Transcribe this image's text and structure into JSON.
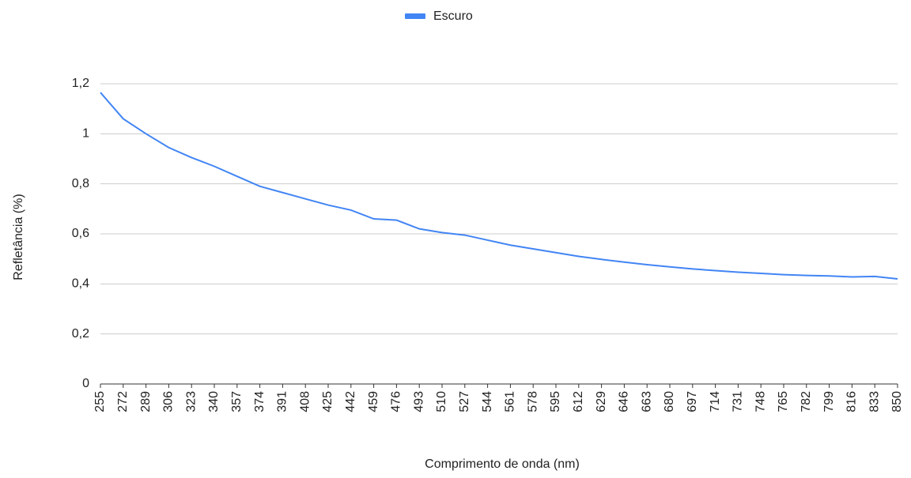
{
  "chart_data": {
    "type": "line",
    "x_label": "Comprimento de onda (nm)",
    "y_label": "Refletância (%)",
    "x": [
      255,
      272,
      289,
      306,
      323,
      340,
      357,
      374,
      391,
      408,
      425,
      442,
      459,
      476,
      493,
      510,
      527,
      544,
      561,
      578,
      595,
      612,
      629,
      646,
      663,
      680,
      697,
      714,
      731,
      748,
      765,
      782,
      799,
      816,
      833,
      850
    ],
    "series": [
      {
        "name": "Escuro",
        "color": "#4285f4",
        "values": [
          1.165,
          1.06,
          1.0,
          0.945,
          0.905,
          0.87,
          0.83,
          0.79,
          0.765,
          0.74,
          0.715,
          0.695,
          0.66,
          0.655,
          0.62,
          0.605,
          0.595,
          0.575,
          0.555,
          0.54,
          0.525,
          0.51,
          0.498,
          0.487,
          0.477,
          0.468,
          0.46,
          0.453,
          0.447,
          0.442,
          0.437,
          0.434,
          0.432,
          0.428,
          0.43,
          0.42
        ]
      }
    ],
    "xlim": [
      255,
      850
    ],
    "xticks": [
      255,
      272,
      289,
      306,
      323,
      340,
      357,
      374,
      391,
      408,
      425,
      442,
      459,
      476,
      493,
      510,
      527,
      544,
      561,
      578,
      595,
      612,
      629,
      646,
      663,
      680,
      697,
      714,
      731,
      748,
      765,
      782,
      799,
      816,
      833,
      850
    ],
    "ylim": [
      0,
      1.2
    ],
    "yticks": [
      0,
      {
        "value": 0.2,
        "label": "0,2"
      },
      {
        "value": 0.4,
        "label": "0,4"
      },
      {
        "value": 0.6,
        "label": "0,6"
      },
      {
        "value": 0.8,
        "label": "0,8"
      },
      1,
      {
        "value": 1.2,
        "label": "1,2"
      }
    ],
    "grid": true,
    "legend": "top"
  }
}
